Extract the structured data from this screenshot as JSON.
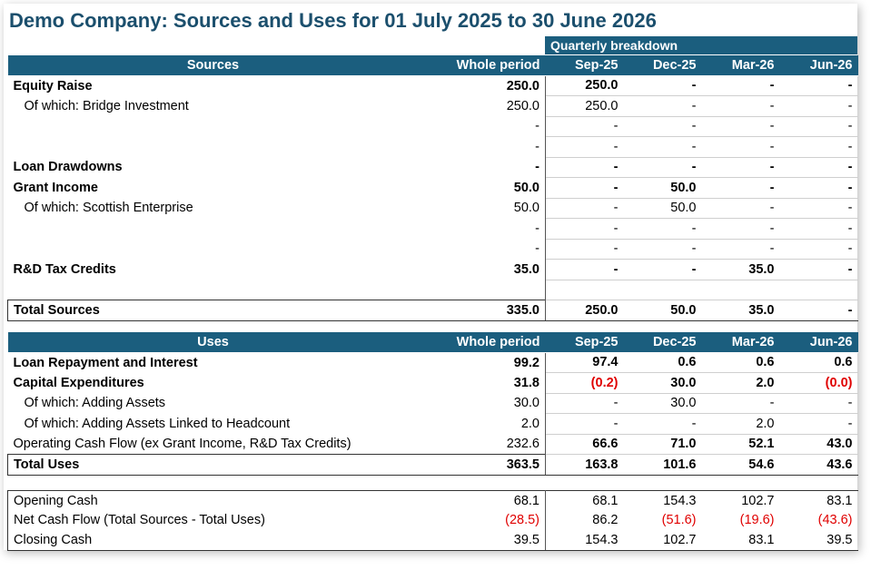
{
  "title": "Demo Company: Sources and Uses for 01 July 2025 to 30 June 2026",
  "quarterly_label": "Quarterly breakdown",
  "periods": [
    "Sep-25",
    "Dec-25",
    "Mar-26",
    "Jun-26"
  ],
  "whole_period_label": "Whole period",
  "sources": {
    "header": "Sources",
    "rows": [
      {
        "label": "Equity Raise",
        "bold": true,
        "whole": "250.0",
        "q": [
          "250.0",
          "-",
          "-",
          "-"
        ]
      },
      {
        "label": "Of which: Bridge Investment",
        "indent": true,
        "whole": "250.0",
        "q": [
          "250.0",
          "-",
          "-",
          "-"
        ]
      },
      {
        "label": "",
        "whole": "-",
        "q": [
          "-",
          "-",
          "-",
          "-"
        ]
      },
      {
        "label": "",
        "whole": "-",
        "q": [
          "-",
          "-",
          "-",
          "-"
        ]
      },
      {
        "label": "Loan Drawdowns",
        "bold": true,
        "whole": "-",
        "q": [
          "-",
          "-",
          "-",
          "-"
        ]
      },
      {
        "label": "Grant Income",
        "bold": true,
        "whole": "50.0",
        "q": [
          "-",
          "50.0",
          "-",
          "-"
        ]
      },
      {
        "label": "Of which: Scottish Enterprise",
        "indent": true,
        "whole": "50.0",
        "q": [
          "-",
          "50.0",
          "-",
          "-"
        ]
      },
      {
        "label": "",
        "whole": "-",
        "q": [
          "-",
          "-",
          "-",
          "-"
        ]
      },
      {
        "label": "",
        "whole": "-",
        "q": [
          "-",
          "-",
          "-",
          "-"
        ]
      },
      {
        "label": "R&D Tax Credits",
        "bold": true,
        "whole": "35.0",
        "q": [
          "-",
          "-",
          "35.0",
          "-"
        ]
      },
      {
        "label": "",
        "whole": "",
        "q": [
          "",
          "",
          "",
          ""
        ]
      }
    ],
    "total": {
      "label": "Total Sources",
      "whole": "335.0",
      "q": [
        "250.0",
        "50.0",
        "35.0",
        "-"
      ]
    }
  },
  "uses": {
    "header": "Uses",
    "rows": [
      {
        "label": "Loan Repayment and Interest",
        "bold": true,
        "whole": "99.2",
        "q": [
          "97.4",
          "0.6",
          "0.6",
          "0.6"
        ]
      },
      {
        "label": "Capital Expenditures",
        "bold": true,
        "whole": "31.8",
        "q": [
          "(0.2)",
          "30.0",
          "2.0",
          "(0.0)"
        ]
      },
      {
        "label": "Of which: Adding Assets",
        "indent": true,
        "whole": "30.0",
        "q": [
          "-",
          "30.0",
          "-",
          "-"
        ]
      },
      {
        "label": "Of which: Adding Assets Linked to Headcount",
        "indent": true,
        "whole": "2.0",
        "q": [
          "-",
          "-",
          "2.0",
          "-"
        ]
      },
      {
        "label": "Operating Cash Flow (ex Grant Income, R&D Tax Credits)",
        "whole": "232.6",
        "q": [
          "66.6",
          "71.0",
          "52.1",
          "43.0"
        ],
        "qbold": true
      }
    ],
    "total": {
      "label": "Total Uses",
      "whole": "363.5",
      "q": [
        "163.8",
        "101.6",
        "54.6",
        "43.6"
      ]
    }
  },
  "cash": [
    {
      "label": "Opening Cash",
      "whole": "68.1",
      "q": [
        "68.1",
        "154.3",
        "102.7",
        "83.1"
      ]
    },
    {
      "label": "Net Cash Flow (Total Sources - Total Uses)",
      "whole": "(28.5)",
      "q": [
        "86.2",
        "(51.6)",
        "(19.6)",
        "(43.6)"
      ]
    },
    {
      "label": "Closing Cash",
      "whole": "39.5",
      "q": [
        "154.3",
        "102.7",
        "83.1",
        "39.5"
      ]
    }
  ],
  "colors": {
    "header": "#1b5e7e",
    "title": "#1b4f6d",
    "negative": "#e00000"
  }
}
